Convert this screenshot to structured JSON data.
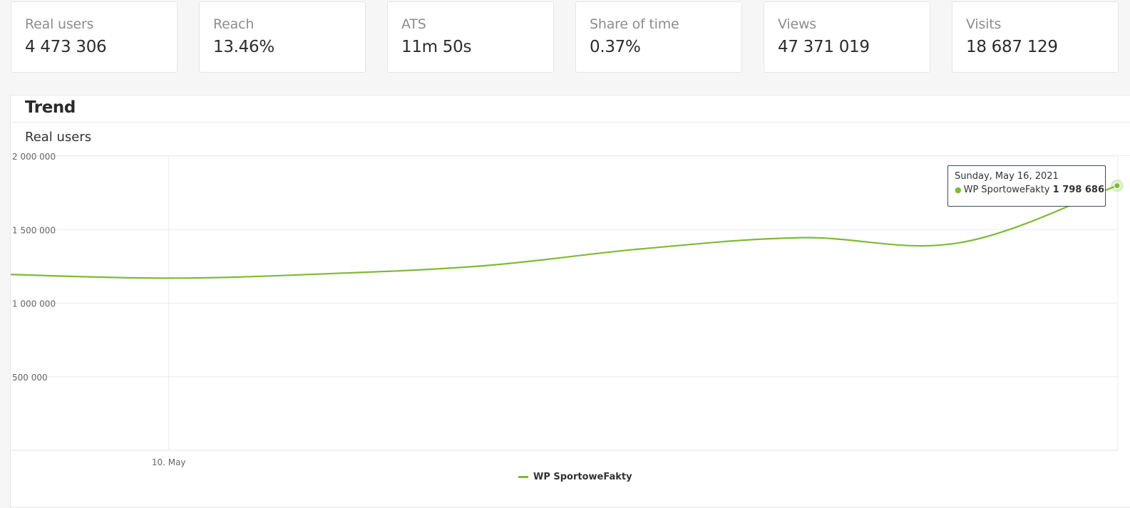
{
  "kpis": [
    {
      "label": "Real users",
      "value": "4 473 306"
    },
    {
      "label": "Reach",
      "value": "13.46%"
    },
    {
      "label": "ATS",
      "value": "11m 50s"
    },
    {
      "label": "Share of time",
      "value": "0.37%"
    },
    {
      "label": "Views",
      "value": "47 371 019"
    },
    {
      "label": "Visits",
      "value": "18 687 129"
    }
  ],
  "panel": {
    "title": "Trend",
    "subtitle": "Real users"
  },
  "tooltip": {
    "date": "Sunday, May 16, 2021",
    "series": "WP SportoweFakty",
    "value": "1 798 686"
  },
  "colors": {
    "series": "#7dbb32"
  },
  "chart_data": {
    "type": "line",
    "title": "Real users",
    "x": [
      "2021-05-09",
      "2021-05-10",
      "2021-05-11",
      "2021-05-12",
      "2021-05-13",
      "2021-05-14",
      "2021-05-15",
      "2021-05-16"
    ],
    "x_tick_labels": [
      {
        "x": "2021-05-10",
        "label": "10. May"
      }
    ],
    "y_tick_labels": [
      "2 000 000",
      "1 500 000",
      "1 000 000",
      "500 000"
    ],
    "y_ticks": [
      2000000,
      1500000,
      1000000,
      500000
    ],
    "ylim": [
      0,
      2000000
    ],
    "series": [
      {
        "name": "WP SportoweFakty",
        "values": [
          1195000,
          1170000,
          1200000,
          1255000,
          1370000,
          1445000,
          1410000,
          1798686
        ]
      }
    ],
    "legend": "bottom-center",
    "grid": true
  }
}
